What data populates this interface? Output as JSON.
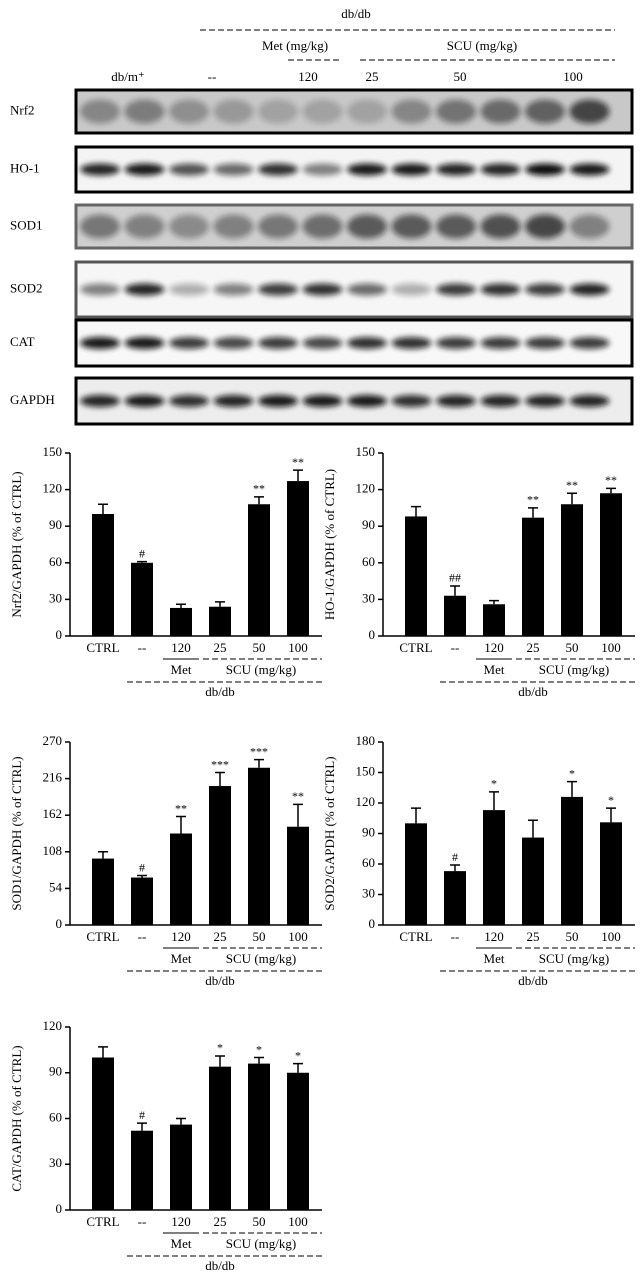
{
  "blot": {
    "strain": "db/db",
    "met_group": "Met (mg/kg)",
    "scu_group": "SCU (mg/kg)",
    "columns": [
      "db/m⁺",
      "--",
      "120",
      "25",
      "50",
      "100"
    ],
    "rows": [
      "Nrf2",
      "HO-1",
      "SOD1",
      "SOD2",
      "CAT",
      "GAPDH"
    ]
  },
  "chart_data": [
    {
      "type": "bar",
      "ylabel": "Nrf2/GAPDH (% of CTRL)",
      "color": "#000000",
      "categories": [
        "CTRL",
        "--",
        "120",
        "25",
        "50",
        "100"
      ],
      "values": [
        100,
        60,
        23,
        24,
        108,
        127
      ],
      "errors": [
        8,
        1,
        3,
        4,
        6,
        9
      ],
      "annotations": [
        null,
        "#",
        null,
        null,
        "**",
        "**"
      ],
      "groups": [
        "Met",
        "SCU (mg/kg)",
        "db/db"
      ],
      "ylim": [
        0,
        150
      ],
      "yticks": [
        0,
        30,
        60,
        90,
        120,
        150
      ]
    },
    {
      "type": "bar",
      "ylabel": "HO-1/GAPDH (% of CTRL)",
      "color": "#000000",
      "categories": [
        "CTRL",
        "--",
        "120",
        "25",
        "50",
        "100"
      ],
      "values": [
        98,
        33,
        26,
        97,
        108,
        117
      ],
      "errors": [
        8,
        8,
        3,
        8,
        9,
        4
      ],
      "annotations": [
        null,
        "##",
        null,
        "**",
        "**",
        "**"
      ],
      "groups": [
        "Met",
        "SCU (mg/kg)",
        "db/db"
      ],
      "ylim": [
        0,
        150
      ],
      "yticks": [
        0,
        30,
        60,
        90,
        120,
        150
      ]
    },
    {
      "type": "bar",
      "ylabel": "SOD1/GAPDH (% of CTRL)",
      "color": "#000000",
      "categories": [
        "CTRL",
        "--",
        "120",
        "25",
        "50",
        "100"
      ],
      "values": [
        98,
        70,
        135,
        205,
        232,
        145
      ],
      "errors": [
        10,
        3,
        25,
        20,
        12,
        33
      ],
      "annotations": [
        null,
        "#",
        "**",
        "***",
        "***",
        "**"
      ],
      "groups": [
        "Met",
        "SCU (mg/kg)",
        "db/db"
      ],
      "ylim": [
        0,
        270
      ],
      "yticks": [
        0,
        54,
        108,
        162,
        216,
        270
      ]
    },
    {
      "type": "bar",
      "ylabel": "SOD2/GAPDH (% of CTRL)",
      "color": "#000000",
      "categories": [
        "CTRL",
        "--",
        "120",
        "25",
        "50",
        "100"
      ],
      "values": [
        100,
        53,
        113,
        86,
        126,
        101
      ],
      "errors": [
        15,
        6,
        18,
        17,
        15,
        14
      ],
      "annotations": [
        null,
        "#",
        "*",
        null,
        "*",
        "*"
      ],
      "groups": [
        "Met",
        "SCU (mg/kg)",
        "db/db"
      ],
      "ylim": [
        0,
        180
      ],
      "yticks": [
        0,
        30,
        60,
        90,
        120,
        150,
        180
      ]
    },
    {
      "type": "bar",
      "ylabel": "CAT/GAPDH (% of CTRL)",
      "color": "#000000",
      "categories": [
        "CTRL",
        "--",
        "120",
        "25",
        "50",
        "100"
      ],
      "values": [
        100,
        52,
        56,
        94,
        96,
        90
      ],
      "errors": [
        7,
        5,
        4,
        7,
        4,
        6
      ],
      "annotations": [
        null,
        "#",
        null,
        "*",
        "*",
        "*"
      ],
      "groups": [
        "Met",
        "SCU (mg/kg)",
        "db/db"
      ],
      "ylim": [
        0,
        120
      ],
      "yticks": [
        0,
        30,
        60,
        90,
        120
      ]
    }
  ]
}
